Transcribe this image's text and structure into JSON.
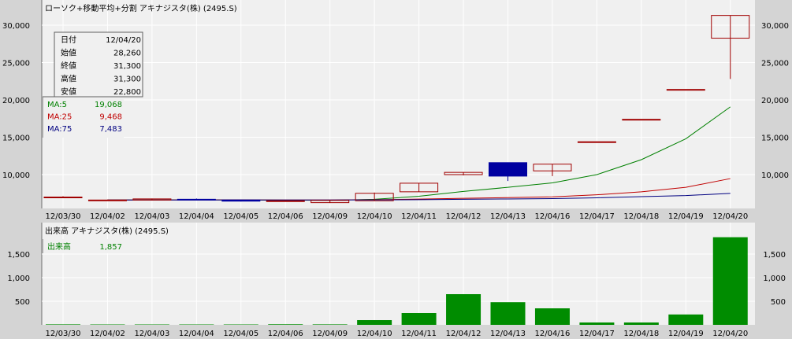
{
  "chart_data": [
    {
      "type": "candlestick",
      "title": "ローソク+移動平均+分割 アキナジスタ(株) (2495.S)",
      "categories": [
        "12/03/30",
        "12/04/02",
        "12/04/03",
        "12/04/04",
        "12/04/05",
        "12/04/06",
        "12/04/09",
        "12/04/10",
        "12/04/11",
        "12/04/12",
        "12/04/13",
        "12/04/16",
        "12/04/17",
        "12/04/18",
        "12/04/19",
        "12/04/20"
      ],
      "ohlc": [
        [
          7000,
          7100,
          6900,
          7000
        ],
        [
          6600,
          6650,
          6550,
          6600
        ],
        [
          6600,
          6800,
          6550,
          6750
        ],
        [
          6700,
          6800,
          6600,
          6650
        ],
        [
          6600,
          6650,
          6400,
          6450
        ],
        [
          6500,
          6550,
          6450,
          6500
        ],
        [
          6250,
          6550,
          6200,
          6550
        ],
        [
          6500,
          7600,
          6500,
          7500
        ],
        [
          7700,
          8850,
          7700,
          8850
        ],
        [
          10000,
          10300,
          9900,
          10300
        ],
        [
          11600,
          11600,
          9150,
          9800
        ],
        [
          10500,
          11400,
          9800,
          11400
        ],
        [
          14400,
          14400,
          14400,
          14400
        ],
        [
          17400,
          17400,
          17400,
          17400
        ],
        [
          21400,
          21400,
          21400,
          21400
        ],
        [
          28260,
          31300,
          22800,
          31300
        ]
      ],
      "ma": [
        {
          "name": "MA:5",
          "color": "#008000",
          "values": [
            null,
            6600,
            6620,
            6640,
            6610,
            6580,
            6560,
            6700,
            7100,
            7750,
            8300,
            8900,
            10000,
            12000,
            14800,
            19068
          ]
        },
        {
          "name": "MA:25",
          "color": "#c00000",
          "values": [
            null,
            6600,
            6610,
            6620,
            6620,
            6610,
            6600,
            6640,
            6720,
            6830,
            6920,
            7020,
            7300,
            7700,
            8300,
            9468
          ]
        },
        {
          "name": "MA:75",
          "color": "#000080",
          "values": [
            null,
            6600,
            6605,
            6610,
            6610,
            6605,
            6600,
            6620,
            6650,
            6700,
            6740,
            6790,
            6900,
            7050,
            7200,
            7483
          ]
        }
      ],
      "yticks": [
        10000,
        15000,
        20000,
        25000,
        30000
      ],
      "ytick_labels": [
        "10,000",
        "15,000",
        "20,000",
        "25,000",
        "30,000"
      ],
      "ylim": [
        5800,
        33200
      ],
      "grid": true,
      "up_color": "#a00000",
      "down_color": "#0000a0",
      "info": {
        "rows": [
          [
            "日付",
            "12/04/20"
          ],
          [
            "始値",
            "28,260"
          ],
          [
            "終値",
            "31,300"
          ],
          [
            "高値",
            "31,300"
          ],
          [
            "安値",
            "22,800"
          ]
        ],
        "ma_rows": [
          [
            "MA:5",
            "19,068",
            "#008000"
          ],
          [
            "MA:25",
            "9,468",
            "#c00000"
          ],
          [
            "MA:75",
            "7,483",
            "#000080"
          ]
        ]
      }
    },
    {
      "type": "bar",
      "title": "出来高 アキナジスタ(株) (2495.S)",
      "categories": [
        "12/03/30",
        "12/04/02",
        "12/04/03",
        "12/04/04",
        "12/04/05",
        "12/04/06",
        "12/04/09",
        "12/04/10",
        "12/04/11",
        "12/04/12",
        "12/04/13",
        "12/04/16",
        "12/04/17",
        "12/04/18",
        "12/04/19",
        "12/04/20"
      ],
      "values": [
        10,
        8,
        8,
        8,
        8,
        12,
        10,
        100,
        250,
        650,
        480,
        350,
        50,
        50,
        220,
        1857
      ],
      "color": "#008c00",
      "yticks": [
        500,
        1000,
        1500
      ],
      "ytick_labels": [
        "500",
        "1,000",
        "1,500"
      ],
      "ylim": [
        0,
        1950
      ],
      "legend": {
        "label": "出来高",
        "value": "1,857"
      }
    }
  ]
}
